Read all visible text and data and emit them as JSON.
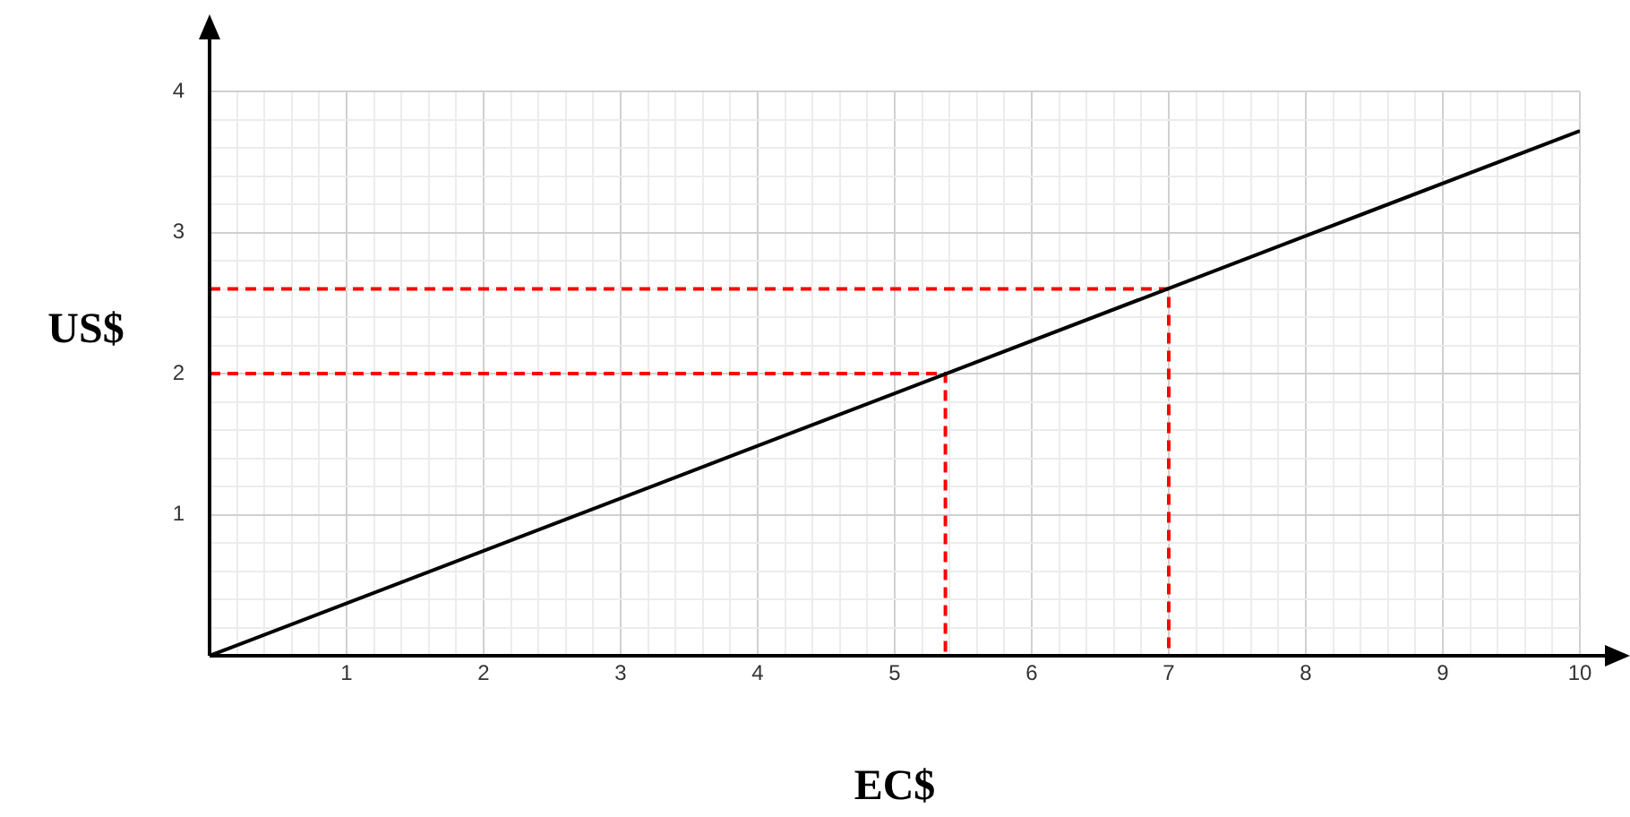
{
  "chart_data": {
    "type": "line",
    "xlabel": "EC$",
    "ylabel": "US$",
    "xlim": [
      0,
      10
    ],
    "ylim": [
      0,
      4
    ],
    "xticks": [
      {
        "value": 0.2,
        "label": null
      },
      {
        "value": 0.4,
        "label": null
      },
      {
        "value": 0.6,
        "label": null
      },
      {
        "value": 0.8,
        "label": null
      },
      1,
      {
        "value": 1.2,
        "label": null
      },
      {
        "value": 1.4,
        "label": null
      },
      {
        "value": 1.6,
        "label": null
      },
      {
        "value": 1.8,
        "label": null
      },
      2,
      {
        "value": 2.2,
        "label": null
      },
      {
        "value": 2.4,
        "label": null
      },
      {
        "value": 2.6,
        "label": null
      },
      {
        "value": 2.8,
        "label": null
      },
      3,
      {
        "value": 3.2,
        "label": null
      },
      {
        "value": 3.4,
        "label": null
      },
      {
        "value": 3.6,
        "label": null
      },
      {
        "value": 3.8,
        "label": null
      },
      4,
      {
        "value": 4.2,
        "label": null
      },
      {
        "value": 4.4,
        "label": null
      },
      {
        "value": 4.6,
        "label": null
      },
      {
        "value": 4.8,
        "label": null
      },
      5,
      {
        "value": 5.2,
        "label": null
      },
      {
        "value": 5.4,
        "label": null
      },
      {
        "value": 5.6,
        "label": null
      },
      {
        "value": 5.8,
        "label": null
      },
      6,
      {
        "value": 6.2,
        "label": null
      },
      {
        "value": 6.4,
        "label": null
      },
      {
        "value": 6.6,
        "label": null
      },
      {
        "value": 6.8,
        "label": null
      },
      7,
      {
        "value": 7.2,
        "label": null
      },
      {
        "value": 7.4,
        "label": null
      },
      {
        "value": 7.6,
        "label": null
      },
      {
        "value": 7.8,
        "label": null
      },
      8,
      {
        "value": 8.2,
        "label": null
      },
      {
        "value": 8.4,
        "label": null
      },
      {
        "value": 8.6,
        "label": null
      },
      {
        "value": 8.8,
        "label": null
      },
      9,
      {
        "value": 9.2,
        "label": null
      },
      {
        "value": 9.4,
        "label": null
      },
      {
        "value": 9.6,
        "label": null
      },
      {
        "value": 9.8,
        "label": null
      },
      10
    ],
    "yticks": [
      {
        "value": 0.2,
        "label": null
      },
      {
        "value": 0.4,
        "label": null
      },
      {
        "value": 0.6,
        "label": null
      },
      {
        "value": 0.8,
        "label": null
      },
      1,
      {
        "value": 1.2,
        "label": null
      },
      {
        "value": 1.4,
        "label": null
      },
      {
        "value": 1.6,
        "label": null
      },
      {
        "value": 1.8,
        "label": null
      },
      2,
      {
        "value": 2.2,
        "label": null
      },
      {
        "value": 2.4,
        "label": null
      },
      {
        "value": 2.6,
        "label": null
      },
      {
        "value": 2.8,
        "label": null
      },
      3,
      {
        "value": 3.2,
        "label": null
      },
      {
        "value": 3.4,
        "label": null
      },
      {
        "value": 3.6,
        "label": null
      },
      {
        "value": 3.8,
        "label": null
      },
      4
    ],
    "grid": true,
    "legend": false,
    "marker": "none",
    "series": [
      {
        "color": "#000000",
        "line_style": "solid",
        "x": [
          0,
          10
        ],
        "values": [
          0,
          3.72
        ]
      },
      {
        "color": "#ff0000",
        "line_style": "dashed",
        "x": [
          0,
          5.37,
          5.37
        ],
        "values": [
          2,
          2,
          0
        ]
      },
      {
        "color": "#ff0000",
        "line_style": "dashed",
        "x": [
          0,
          7,
          7
        ],
        "values": [
          2.6,
          2.6,
          0
        ]
      }
    ]
  }
}
